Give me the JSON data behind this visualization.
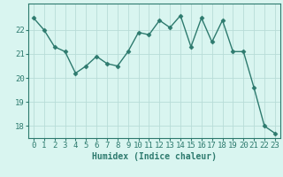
{
  "x": [
    0,
    1,
    2,
    3,
    4,
    5,
    6,
    7,
    8,
    9,
    10,
    11,
    12,
    13,
    14,
    15,
    16,
    17,
    18,
    19,
    20,
    21,
    22,
    23
  ],
  "y": [
    22.5,
    22.0,
    21.3,
    21.1,
    20.2,
    20.5,
    20.9,
    20.6,
    20.5,
    21.1,
    21.9,
    21.8,
    22.4,
    22.1,
    22.6,
    21.3,
    22.5,
    21.5,
    22.4,
    21.1,
    21.1,
    19.6,
    18.0,
    17.7
  ],
  "line_color": "#2d7a6e",
  "marker": "D",
  "marker_size": 2.5,
  "bg_color": "#d9f5f0",
  "grid_color": "#b8dcd8",
  "axis_color": "#2d7a6e",
  "tick_color": "#2d7a6e",
  "xlabel": "Humidex (Indice chaleur)",
  "ylim": [
    17.5,
    23.1
  ],
  "yticks": [
    18,
    19,
    20,
    21,
    22
  ],
  "xticks": [
    0,
    1,
    2,
    3,
    4,
    5,
    6,
    7,
    8,
    9,
    10,
    11,
    12,
    13,
    14,
    15,
    16,
    17,
    18,
    19,
    20,
    21,
    22,
    23
  ],
  "xlabel_fontsize": 7,
  "tick_fontsize": 6.5,
  "line_width": 1.0
}
